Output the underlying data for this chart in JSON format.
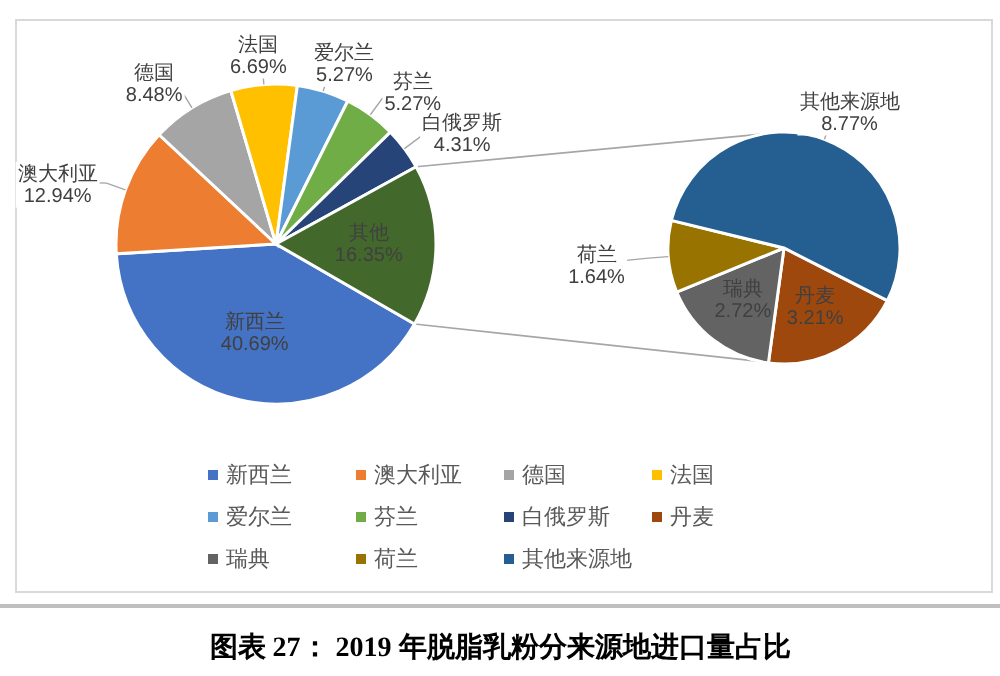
{
  "chart_data": [
    {
      "type": "pie",
      "title": "图表 27：  2019 年脱脂乳粉分来源地进口量占比",
      "legend": "bottom",
      "value_labels": [
        "40.69%",
        "12.94%",
        "8.48%",
        "6.69%",
        "5.27%",
        "5.27%",
        "4.31%",
        "16.35%"
      ],
      "categories": [
        "新西兰",
        "澳大利亚",
        "德国",
        "法国",
        "爱尔兰",
        "芬兰",
        "白俄罗斯",
        "其他"
      ],
      "values": [
        40.69,
        12.94,
        8.48,
        6.69,
        5.27,
        5.27,
        4.31,
        16.35
      ],
      "colors": [
        "#4472c4",
        "#ed7d31",
        "#a5a5a5",
        "#ffc000",
        "#5b9bd5",
        "#70ad47",
        "#264478",
        "#43682b"
      ]
    },
    {
      "type": "pie",
      "legend": "bottom",
      "value_labels": [
        "3.21%",
        "2.72%",
        "1.64%",
        "8.77%"
      ],
      "categories": [
        "丹麦",
        "瑞典",
        "荷兰",
        "其他来源地"
      ],
      "values": [
        3.21,
        2.72,
        1.64,
        8.77
      ],
      "colors": [
        "#9e480e",
        "#636363",
        "#997300",
        "#255e91"
      ]
    }
  ]
}
